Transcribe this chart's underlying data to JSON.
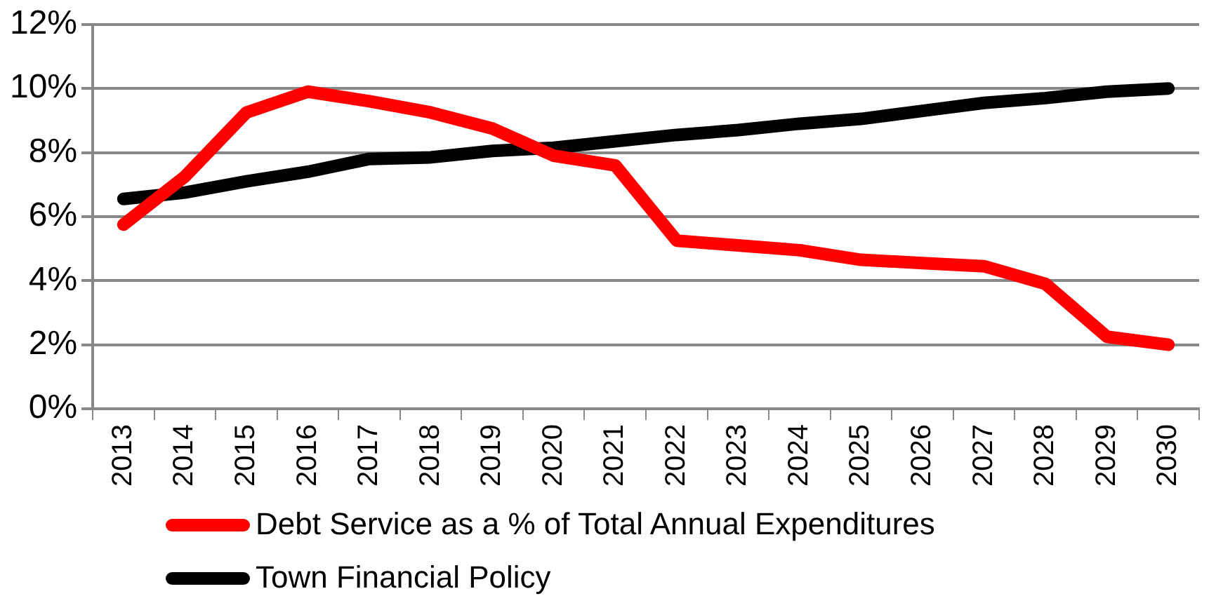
{
  "chart_data": {
    "type": "line",
    "categories": [
      "2013",
      "2014",
      "2015",
      "2016",
      "2017",
      "2018",
      "2019",
      "2020",
      "2021",
      "2022",
      "2023",
      "2024",
      "2025",
      "2026",
      "2027",
      "2028",
      "2029",
      "2030"
    ],
    "series": [
      {
        "name": "Debt Service as a % of Total Annual Expenditures",
        "color": "#ff0000",
        "values": [
          5.75,
          7.25,
          9.25,
          9.9,
          9.6,
          9.25,
          8.75,
          7.9,
          7.6,
          5.25,
          5.1,
          4.95,
          4.65,
          4.55,
          4.45,
          3.9,
          2.25,
          2.0
        ]
      },
      {
        "name": "Town Financial Policy",
        "color": "#000000",
        "values": [
          6.55,
          6.75,
          7.1,
          7.4,
          7.8,
          7.85,
          8.05,
          8.15,
          8.35,
          8.55,
          8.7,
          8.9,
          9.05,
          9.3,
          9.55,
          9.7,
          9.9,
          10.0
        ]
      }
    ],
    "ylim": [
      0,
      12
    ],
    "yticks": [
      {
        "value": 0,
        "label": "0%"
      },
      {
        "value": 2,
        "label": "2%"
      },
      {
        "value": 4,
        "label": "4%"
      },
      {
        "value": 6,
        "label": "6%"
      },
      {
        "value": 8,
        "label": "8%"
      },
      {
        "value": 10,
        "label": "10%"
      },
      {
        "value": 12,
        "label": "12%"
      }
    ],
    "grid": "y",
    "legend": "bottom left",
    "marker": "none",
    "line_style": "solid"
  }
}
